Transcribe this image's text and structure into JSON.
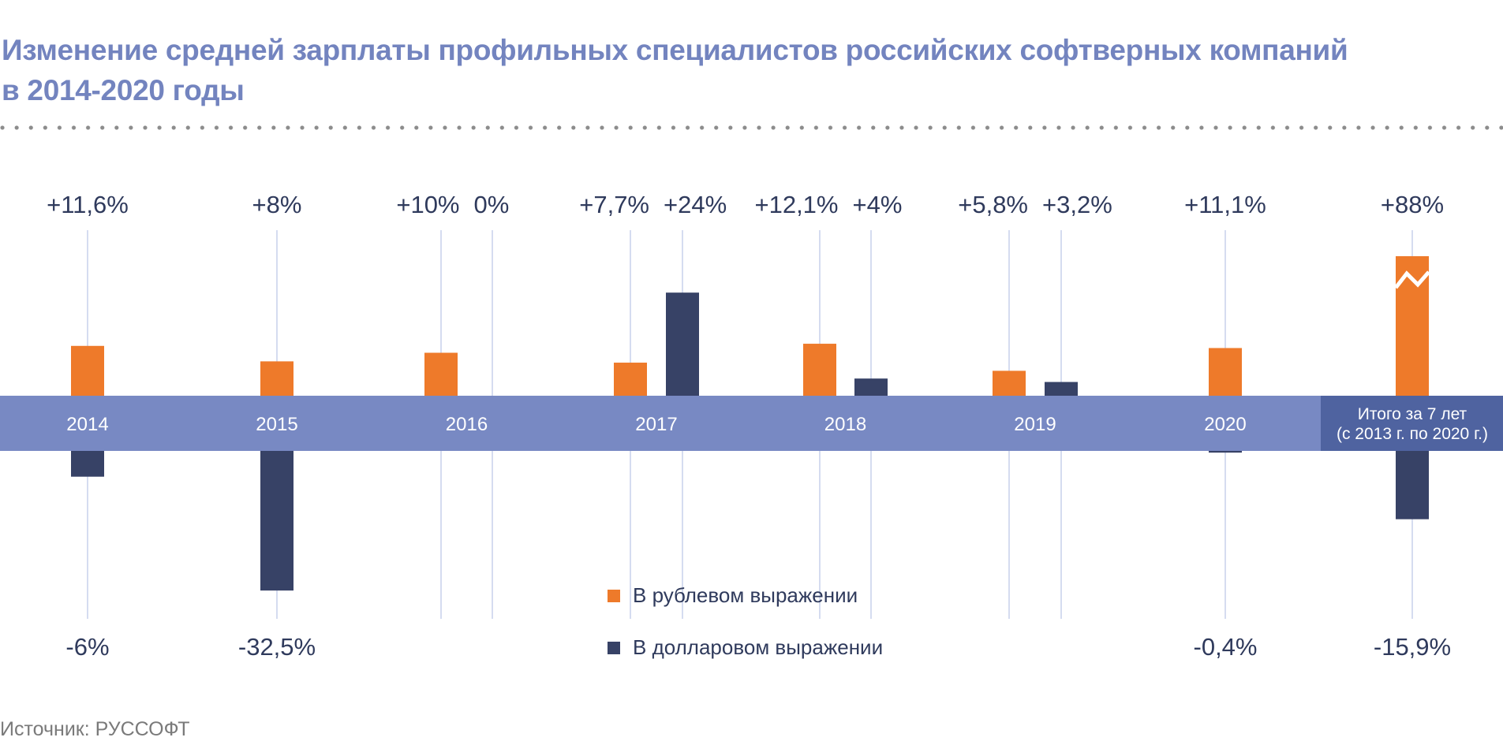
{
  "title_line1": "Изменение средней зарплаты профильных специалистов российских софтверных компаний",
  "title_line2": "в 2014-2020 годы",
  "source": "Источник: РУССОФТ",
  "colors": {
    "rub": "#ee7a2a",
    "usd": "#374266",
    "band": "#7889c3",
    "total_band": "#4f63a0",
    "title": "#7384bf",
    "label": "#2f3a5c",
    "gridline": "#d5dcf0"
  },
  "chart_data": {
    "type": "bar",
    "categories": [
      "2014",
      "2015",
      "2016",
      "2017",
      "2018",
      "2019",
      "2020",
      "Итого за 7 лет\n(с 2013 г. по 2020 г.)"
    ],
    "total_label_line1": "Итого за 7 лет",
    "total_label_line2": "(с 2013 г. по 2020 г.)",
    "series": [
      {
        "name": "В рублевом выражении",
        "values": [
          11.6,
          8,
          10,
          7.7,
          12.1,
          5.8,
          11.1,
          88
        ],
        "labels": [
          "+11,6%",
          "+8%",
          "+10%",
          "+7,7%",
          "+12,1%",
          "+5,8%",
          "+11,1%",
          "+88%"
        ]
      },
      {
        "name": "В долларовом выражении",
        "values": [
          -6,
          -32.5,
          0,
          24,
          4,
          3.2,
          -0.4,
          -15.9
        ],
        "labels": [
          "-6%",
          "-32,5%",
          "0%",
          "+24%",
          "+4%",
          "+3,2%",
          "-0,4%",
          "-15,9%"
        ]
      }
    ],
    "axis_break": "88% bar is truncated (break mark)",
    "legend_placement": "bottom-center",
    "grid": false
  }
}
